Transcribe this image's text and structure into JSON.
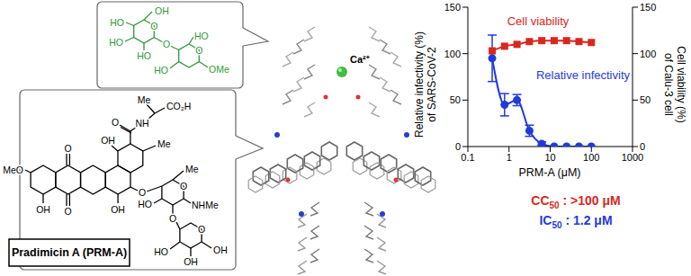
{
  "chart_data": {
    "type": "line",
    "log": "x",
    "xlabel": "PRM-A (μM)",
    "ylabel": [
      "Relative infectivity (%)",
      "of SARS-CoV-2"
    ],
    "y2label": [
      "Cell viability (%)",
      "of Calu-3 cell"
    ],
    "x": [
      0.39,
      0.78,
      1.56,
      3.13,
      6.25,
      12.5,
      25,
      50,
      100
    ],
    "xlim": [
      0.1,
      1000
    ],
    "xticks": [
      0.1,
      1,
      10,
      100,
      1000
    ],
    "ylim": [
      0,
      150
    ],
    "yticks": [
      0,
      50,
      100,
      150
    ],
    "y2lim": [
      0,
      150
    ],
    "y2ticks": [
      0,
      50,
      100,
      150
    ],
    "series": [
      {
        "name": "Relative infectivity",
        "color": "#1f3cd8",
        "marker": "circle",
        "values": [
          95,
          45,
          50,
          17,
          3,
          0,
          0,
          0,
          0
        ],
        "errors": [
          25,
          12,
          6,
          6,
          2,
          0,
          0,
          0,
          0
        ]
      },
      {
        "name": "Cell viability",
        "color": "#d8281e",
        "marker": "square",
        "axis": "y2",
        "values": [
          103,
          108,
          110,
          113,
          114,
          114,
          114,
          113,
          112
        ]
      }
    ],
    "annotations": [
      {
        "text": "CC",
        "subscript": "50",
        "rest": " : >100 μM",
        "color": "#d8281e"
      },
      {
        "text": "IC",
        "subscript": "50",
        "rest": " : 1.2 μM",
        "color": "#1f3cd8"
      }
    ]
  },
  "diagram": {
    "compound": "Pradimicin A (PRM-A)",
    "compound_labels": [
      "MeO",
      "OH",
      "O",
      "O",
      "OH",
      "O",
      "NH",
      "Me",
      "CO₂H",
      "Me",
      "O",
      "OH",
      "O",
      "Me",
      "NHMe",
      "HO",
      "O",
      "O",
      "OH",
      "HO",
      "OH"
    ],
    "saccharide_labels": [
      "OH",
      "HO",
      "O",
      "HO",
      "HO",
      "O",
      "O",
      "OMe",
      "HO",
      "HO"
    ],
    "ion": "Ca²⁺"
  }
}
